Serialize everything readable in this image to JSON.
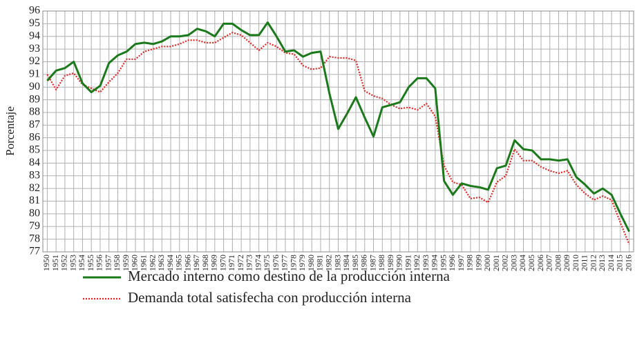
{
  "chart_data": {
    "type": "line",
    "y_label": "Porcentaje",
    "categories": [
      "1950",
      "1951",
      "1952",
      "1953",
      "1954",
      "1955",
      "1956",
      "1957",
      "1958",
      "1959",
      "1960",
      "1961",
      "1962",
      "1963",
      "1964",
      "1965",
      "1966",
      "1967",
      "1968",
      "1969",
      "1970",
      "1971",
      "1972",
      "1973",
      "1974",
      "1975",
      "1976",
      "1977",
      "1978",
      "1979",
      "1980",
      "1981",
      "1982",
      "1983",
      "1984",
      "1985",
      "1986",
      "1987",
      "1988",
      "1989",
      "1990",
      "1991",
      "1992",
      "1993",
      "1994",
      "1995",
      "1996",
      "1997",
      "1998",
      "1999",
      "2000",
      "2001",
      "2002",
      "2003",
      "2004",
      "2005",
      "2006",
      "2007",
      "2008",
      "2009",
      "2010",
      "2011",
      "2012",
      "2013",
      "2014",
      "2015",
      "2016"
    ],
    "series": [
      {
        "name": "Mercado interno como destino de la producción interna",
        "color": "#1a7a1a",
        "dash": "solid",
        "values": [
          90.5,
          91.3,
          91.5,
          92.0,
          90.3,
          89.6,
          90.1,
          91.9,
          92.5,
          92.8,
          93.4,
          93.5,
          93.4,
          93.6,
          94.0,
          94.0,
          94.1,
          94.6,
          94.4,
          94.0,
          95.0,
          95.0,
          94.5,
          94.1,
          94.1,
          95.1,
          94.0,
          92.8,
          92.9,
          92.4,
          92.7,
          92.8,
          89.5,
          86.7,
          87.9,
          89.2,
          87.6,
          86.1,
          88.4,
          88.6,
          88.8,
          90.0,
          90.7,
          90.7,
          89.9,
          82.6,
          81.5,
          82.4,
          82.2,
          82.1,
          81.9,
          83.6,
          83.8,
          85.8,
          85.1,
          85.0,
          84.3,
          84.3,
          84.2,
          84.3,
          82.9,
          82.3,
          81.6,
          82.0,
          81.5,
          80.0,
          78.6
        ]
      },
      {
        "name": "Demanda total satisfecha con producción interna",
        "color": "#e8231f",
        "dash": "dotted",
        "values": [
          91.0,
          89.8,
          90.9,
          91.1,
          90.2,
          89.9,
          89.6,
          90.4,
          91.1,
          92.2,
          92.2,
          92.8,
          93.0,
          93.2,
          93.2,
          93.4,
          93.7,
          93.7,
          93.5,
          93.5,
          93.9,
          94.3,
          94.1,
          93.5,
          92.9,
          93.5,
          93.2,
          92.7,
          92.6,
          91.7,
          91.4,
          91.5,
          92.4,
          92.3,
          92.3,
          92.1,
          89.7,
          89.3,
          89.1,
          88.6,
          88.3,
          88.4,
          88.2,
          88.7,
          87.7,
          83.8,
          82.5,
          82.3,
          81.2,
          81.3,
          80.9,
          82.5,
          83.0,
          85.1,
          84.2,
          84.2,
          83.7,
          83.4,
          83.2,
          83.4,
          82.3,
          81.6,
          81.1,
          81.4,
          81.1,
          79.3,
          77.6
        ]
      }
    ],
    "ylim": [
      77,
      96
    ],
    "yticks": [
      77,
      78,
      79,
      80,
      81,
      82,
      83,
      84,
      85,
      86,
      87,
      88,
      89,
      90,
      91,
      92,
      93,
      94,
      95,
      96
    ],
    "grid": true,
    "legend": "bottom"
  }
}
